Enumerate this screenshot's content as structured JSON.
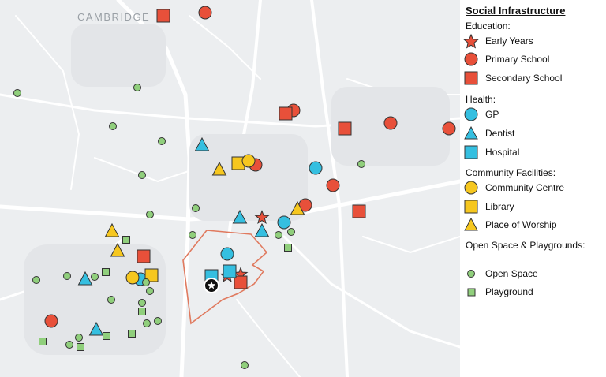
{
  "map": {
    "place_label": "CAMBRIDGE",
    "colors": {
      "education": "#e8503a",
      "health": "#35bfe0",
      "community": "#f6c71f",
      "open_space": "#90cf7c",
      "site_boundary": "#e07a5f",
      "background": "#eceef0",
      "roads": "#ffffff"
    }
  },
  "legend": {
    "title": "Social Infrastructure",
    "groups": [
      {
        "heading": "Education:",
        "items": [
          {
            "label": "Early Years",
            "symbol": "star",
            "color": "#e8503a"
          },
          {
            "label": "Primary School",
            "symbol": "circle",
            "color": "#e8503a"
          },
          {
            "label": "Secondary School",
            "symbol": "square",
            "color": "#e8503a"
          }
        ]
      },
      {
        "heading": "Health:",
        "items": [
          {
            "label": "GP",
            "symbol": "circle",
            "color": "#35bfe0"
          },
          {
            "label": "Dentist",
            "symbol": "triangle",
            "color": "#35bfe0"
          },
          {
            "label": "Hospital",
            "symbol": "square",
            "color": "#35bfe0"
          }
        ]
      },
      {
        "heading": "Community Facilities:",
        "items": [
          {
            "label": "Community Centre",
            "symbol": "circle",
            "color": "#f6c71f"
          },
          {
            "label": "Library",
            "symbol": "square",
            "color": "#f6c71f"
          },
          {
            "label": "Place of Worship",
            "symbol": "triangle",
            "color": "#f6c71f"
          }
        ]
      },
      {
        "heading": "Open Space & Playgrounds:",
        "items": [
          {
            "label": "Open Space",
            "symbol": "small-circle",
            "color": "#90cf7c"
          },
          {
            "label": "Playground",
            "symbol": "small-square",
            "color": "#90cf7c"
          }
        ]
      }
    ]
  }
}
